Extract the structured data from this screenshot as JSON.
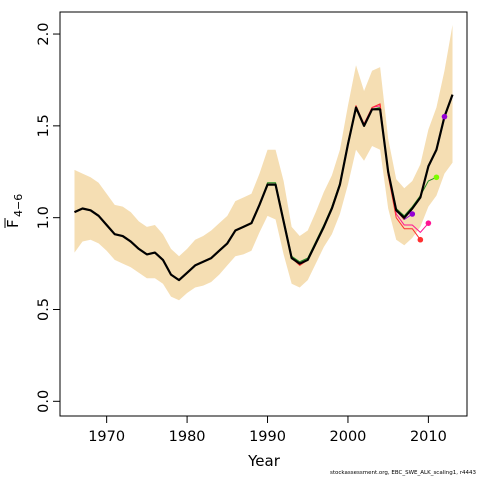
{
  "chart_data": {
    "type": "line",
    "xlabel": "Year",
    "ylabel_main": "F",
    "ylabel_sub": "4−6",
    "xlim": [
      1964.2,
      2014.8
    ],
    "ylim": [
      -0.08,
      2.12
    ],
    "xticks": [
      1970,
      1980,
      1990,
      2000,
      2010
    ],
    "yticks": [
      0.0,
      0.5,
      1.0,
      1.5,
      2.0
    ],
    "ytick_labels": [
      "0.0",
      "0.5",
      "1.0",
      "1.5",
      "2.0"
    ],
    "band_color": "#f5deb3",
    "band_x": [
      1966,
      1967,
      1968,
      1969,
      1970,
      1971,
      1972,
      1973,
      1974,
      1975,
      1976,
      1977,
      1978,
      1979,
      1980,
      1981,
      1982,
      1983,
      1984,
      1985,
      1986,
      1987,
      1988,
      1989,
      1990,
      1991,
      1992,
      1993,
      1994,
      1995,
      1996,
      1997,
      1998,
      1999,
      2000,
      2001,
      2002,
      2003,
      2004,
      2005,
      2006,
      2007,
      2008,
      2009,
      2010,
      2011,
      2012,
      2013
    ],
    "band_lower": [
      0.81,
      0.87,
      0.88,
      0.86,
      0.82,
      0.77,
      0.75,
      0.73,
      0.7,
      0.67,
      0.67,
      0.64,
      0.57,
      0.55,
      0.59,
      0.62,
      0.63,
      0.65,
      0.69,
      0.74,
      0.79,
      0.8,
      0.82,
      0.92,
      1.01,
      0.99,
      0.8,
      0.64,
      0.62,
      0.66,
      0.75,
      0.84,
      0.91,
      1.02,
      1.18,
      1.37,
      1.31,
      1.39,
      1.37,
      1.05,
      0.88,
      0.85,
      0.89,
      0.95,
      1.06,
      1.12,
      1.24,
      1.3
    ],
    "band_upper": [
      1.26,
      1.24,
      1.22,
      1.19,
      1.13,
      1.07,
      1.06,
      1.03,
      0.98,
      0.95,
      0.96,
      0.91,
      0.83,
      0.79,
      0.83,
      0.88,
      0.9,
      0.93,
      0.97,
      1.01,
      1.09,
      1.11,
      1.13,
      1.24,
      1.37,
      1.37,
      1.2,
      0.95,
      0.9,
      0.93,
      1.03,
      1.14,
      1.23,
      1.37,
      1.61,
      1.83,
      1.69,
      1.8,
      1.82,
      1.43,
      1.21,
      1.16,
      1.2,
      1.29,
      1.48,
      1.6,
      1.8,
      2.05
    ],
    "series": [
      {
        "color": "#000000",
        "width": 2.2,
        "x": [
          1966,
          1967,
          1968,
          1969,
          1970,
          1971,
          1972,
          1973,
          1974,
          1975,
          1976,
          1977,
          1978,
          1979,
          1980,
          1981,
          1982,
          1983,
          1984,
          1985,
          1986,
          1987,
          1988,
          1989,
          1990,
          1991,
          1992,
          1993,
          1994,
          1995,
          1996,
          1997,
          1998,
          1999,
          2000,
          2001,
          2002,
          2003,
          2004,
          2005,
          2006,
          2007,
          2008,
          2009,
          2010,
          2011,
          2012,
          2013
        ],
        "y": [
          1.03,
          1.05,
          1.04,
          1.01,
          0.96,
          0.91,
          0.9,
          0.87,
          0.83,
          0.8,
          0.81,
          0.77,
          0.69,
          0.66,
          0.7,
          0.74,
          0.76,
          0.78,
          0.82,
          0.86,
          0.93,
          0.95,
          0.97,
          1.07,
          1.18,
          1.18,
          0.98,
          0.78,
          0.75,
          0.77,
          0.86,
          0.95,
          1.05,
          1.18,
          1.4,
          1.6,
          1.5,
          1.59,
          1.59,
          1.25,
          1.04,
          1.0,
          1.05,
          1.11,
          1.28,
          1.37,
          1.55,
          1.67
        ]
      },
      {
        "color": "#228b22",
        "width": 1.0,
        "x": [
          1966,
          1967,
          1968,
          1969,
          1970,
          1971,
          1972,
          1973,
          1974,
          1975,
          1976,
          1977,
          1978,
          1979,
          1980,
          1981,
          1982,
          1983,
          1984,
          1985,
          1986,
          1987,
          1988,
          1989,
          1990,
          1991,
          1992,
          1993,
          1994,
          1995,
          1996,
          1997,
          1998,
          1999,
          2000,
          2001,
          2002,
          2003,
          2004,
          2005,
          2006,
          2007,
          2008,
          2009,
          2010,
          2011
        ],
        "y": [
          1.03,
          1.05,
          1.04,
          1.01,
          0.96,
          0.91,
          0.9,
          0.87,
          0.83,
          0.8,
          0.81,
          0.77,
          0.69,
          0.66,
          0.7,
          0.74,
          0.76,
          0.78,
          0.82,
          0.86,
          0.93,
          0.95,
          0.97,
          1.07,
          1.19,
          1.19,
          0.99,
          0.79,
          0.76,
          0.78,
          0.87,
          0.96,
          1.06,
          1.19,
          1.41,
          1.6,
          1.5,
          1.59,
          1.6,
          1.25,
          1.05,
          1.01,
          1.06,
          1.12,
          1.2,
          1.22
        ]
      },
      {
        "color": "#ff1493",
        "width": 1.0,
        "x": [
          1966,
          1967,
          1968,
          1969,
          1970,
          1971,
          1972,
          1973,
          1974,
          1975,
          1976,
          1977,
          1978,
          1979,
          1980,
          1981,
          1982,
          1983,
          1984,
          1985,
          1986,
          1987,
          1988,
          1989,
          1990,
          1991,
          1992,
          1993,
          1994,
          1995,
          1996,
          1997,
          1998,
          1999,
          2000,
          2001,
          2002,
          2003,
          2004,
          2005,
          2006,
          2007,
          2008,
          2009,
          2010
        ],
        "y": [
          1.03,
          1.05,
          1.04,
          1.01,
          0.96,
          0.91,
          0.9,
          0.87,
          0.83,
          0.8,
          0.81,
          0.77,
          0.69,
          0.66,
          0.7,
          0.74,
          0.76,
          0.78,
          0.82,
          0.86,
          0.93,
          0.95,
          0.97,
          1.07,
          1.18,
          1.18,
          0.98,
          0.78,
          0.75,
          0.77,
          0.86,
          0.95,
          1.05,
          1.18,
          1.4,
          1.6,
          1.51,
          1.6,
          1.61,
          1.24,
          1.02,
          0.96,
          0.96,
          0.92,
          0.97
        ]
      },
      {
        "color": "#ff3030",
        "width": 1.0,
        "x": [
          1966,
          1967,
          1968,
          1969,
          1970,
          1971,
          1972,
          1973,
          1974,
          1975,
          1976,
          1977,
          1978,
          1979,
          1980,
          1981,
          1982,
          1983,
          1984,
          1985,
          1986,
          1987,
          1988,
          1989,
          1990,
          1991,
          1992,
          1993,
          1994,
          1995,
          1996,
          1997,
          1998,
          1999,
          2000,
          2001,
          2002,
          2003,
          2004,
          2005,
          2006,
          2007,
          2008,
          2009
        ],
        "y": [
          1.03,
          1.05,
          1.04,
          1.01,
          0.96,
          0.91,
          0.9,
          0.87,
          0.83,
          0.8,
          0.81,
          0.77,
          0.69,
          0.66,
          0.7,
          0.74,
          0.76,
          0.78,
          0.82,
          0.86,
          0.93,
          0.95,
          0.97,
          1.07,
          1.18,
          1.18,
          0.98,
          0.78,
          0.74,
          0.77,
          0.86,
          0.95,
          1.05,
          1.18,
          1.4,
          1.61,
          1.51,
          1.6,
          1.62,
          1.23,
          1.0,
          0.94,
          0.94,
          0.88
        ]
      },
      {
        "color": "#9400d3",
        "width": 1.0,
        "x": [
          2005,
          2006,
          2007,
          2008
        ],
        "y": [
          1.25,
          1.04,
          0.99,
          1.02
        ]
      },
      {
        "color": "#b22222",
        "width": 1.0,
        "x": [
          2005,
          2006,
          2007
        ],
        "y": [
          1.25,
          1.04,
          0.99
        ]
      }
    ],
    "endpoints": [
      {
        "x": 2008,
        "y": 1.02,
        "color": "#9400d3"
      },
      {
        "x": 2009,
        "y": 0.88,
        "color": "#ff3030"
      },
      {
        "x": 2010,
        "y": 0.97,
        "color": "#ff1493"
      },
      {
        "x": 2011,
        "y": 1.22,
        "color": "#7cfc00"
      },
      {
        "x": 2012,
        "y": 1.55,
        "color": "#9400d3"
      }
    ]
  },
  "footer": "stockassessment.org, EBC_SWE_ALK_scaling1, r4443"
}
